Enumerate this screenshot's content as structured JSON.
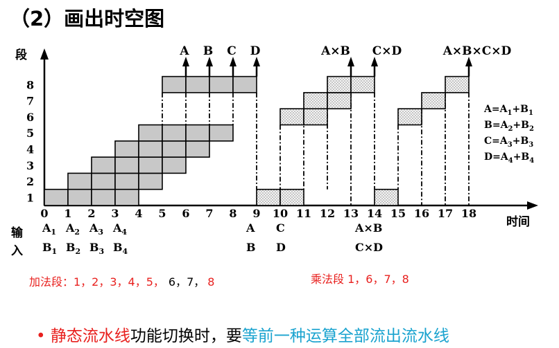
{
  "title": "（2）画出时空图",
  "axes": {
    "y_label": "段",
    "x_label": "时间",
    "y_ticks": [
      "1",
      "2",
      "3",
      "4",
      "5",
      "6",
      "7",
      "8"
    ],
    "x_ticks": [
      "0",
      "1",
      "2",
      "3",
      "4",
      "5",
      "6",
      "7",
      "8",
      "9",
      "10",
      "11",
      "12",
      "13",
      "14",
      "15",
      "16",
      "17",
      "18"
    ]
  },
  "outputs": {
    "add": [
      "A",
      "B",
      "C",
      "D"
    ],
    "mul1": "A×B",
    "mul2": "C×D",
    "final": "A×B×C×D"
  },
  "formulas": [
    {
      "lhs": "A=A",
      "s1": "1",
      "mid": "+B",
      "s2": "1"
    },
    {
      "lhs": "B=A",
      "s1": "2",
      "mid": "+B",
      "s2": "2"
    },
    {
      "lhs": "C=A",
      "s1": "3",
      "mid": "+B",
      "s2": "3"
    },
    {
      "lhs": "D=A",
      "s1": "4",
      "mid": "+B",
      "s2": "4"
    }
  ],
  "input_label_1": "输",
  "input_label_2": "入",
  "inputs_row1": [
    {
      "base": "A",
      "sub": "1"
    },
    {
      "base": "A",
      "sub": "2"
    },
    {
      "base": "A",
      "sub": "3"
    },
    {
      "base": "A",
      "sub": "4"
    }
  ],
  "inputs_row2": [
    {
      "base": "B",
      "sub": "1"
    },
    {
      "base": "B",
      "sub": "2"
    },
    {
      "base": "B",
      "sub": "3"
    },
    {
      "base": "B",
      "sub": "4"
    }
  ],
  "later_inputs": {
    "r1_a": "A",
    "r1_c": "C",
    "r1_ab": "A×B",
    "r2_b": "B",
    "r2_d": "D",
    "r2_cd": "C×D"
  },
  "stage_notes": {
    "add_prefix": "加法段：1，2，3，4，5，",
    "add_black": "6，7，",
    "add_last": "8",
    "mul": "乘法段 1，6，7，8"
  },
  "bottom_text": {
    "bullet": "•",
    "part1": "静态流水线",
    "part2": "功能切换时，要",
    "part3": "等前一种运算全部流出流水线"
  },
  "colors": {
    "add_fill": "#c8c8c8",
    "mul_fill": "#f0f0f0",
    "red": "#e8201e",
    "blue": "#1aa3cf"
  },
  "chart_data": {
    "type": "space-time diagram",
    "x_range": [
      0,
      18
    ],
    "y_range": [
      1,
      8
    ],
    "addition_blocks": [
      {
        "stage": 1,
        "start": 0,
        "end": 4
      },
      {
        "stage": 2,
        "start": 1,
        "end": 5
      },
      {
        "stage": 3,
        "start": 2,
        "end": 6
      },
      {
        "stage": 4,
        "start": 3,
        "end": 7
      },
      {
        "stage": 5,
        "start": 4,
        "end": 8
      },
      {
        "stage": 8,
        "start": 5,
        "end": 9
      }
    ],
    "multiplication_blocks": [
      {
        "stage": 1,
        "start": 9,
        "end": 11
      },
      {
        "stage": 6,
        "start": 10,
        "end": 12
      },
      {
        "stage": 7,
        "start": 11,
        "end": 13
      },
      {
        "stage": 8,
        "start": 12,
        "end": 14
      },
      {
        "stage": 1,
        "start": 14,
        "end": 15
      },
      {
        "stage": 6,
        "start": 15,
        "end": 16
      },
      {
        "stage": 7,
        "start": 16,
        "end": 17
      },
      {
        "stage": 8,
        "start": 17,
        "end": 18
      }
    ]
  }
}
